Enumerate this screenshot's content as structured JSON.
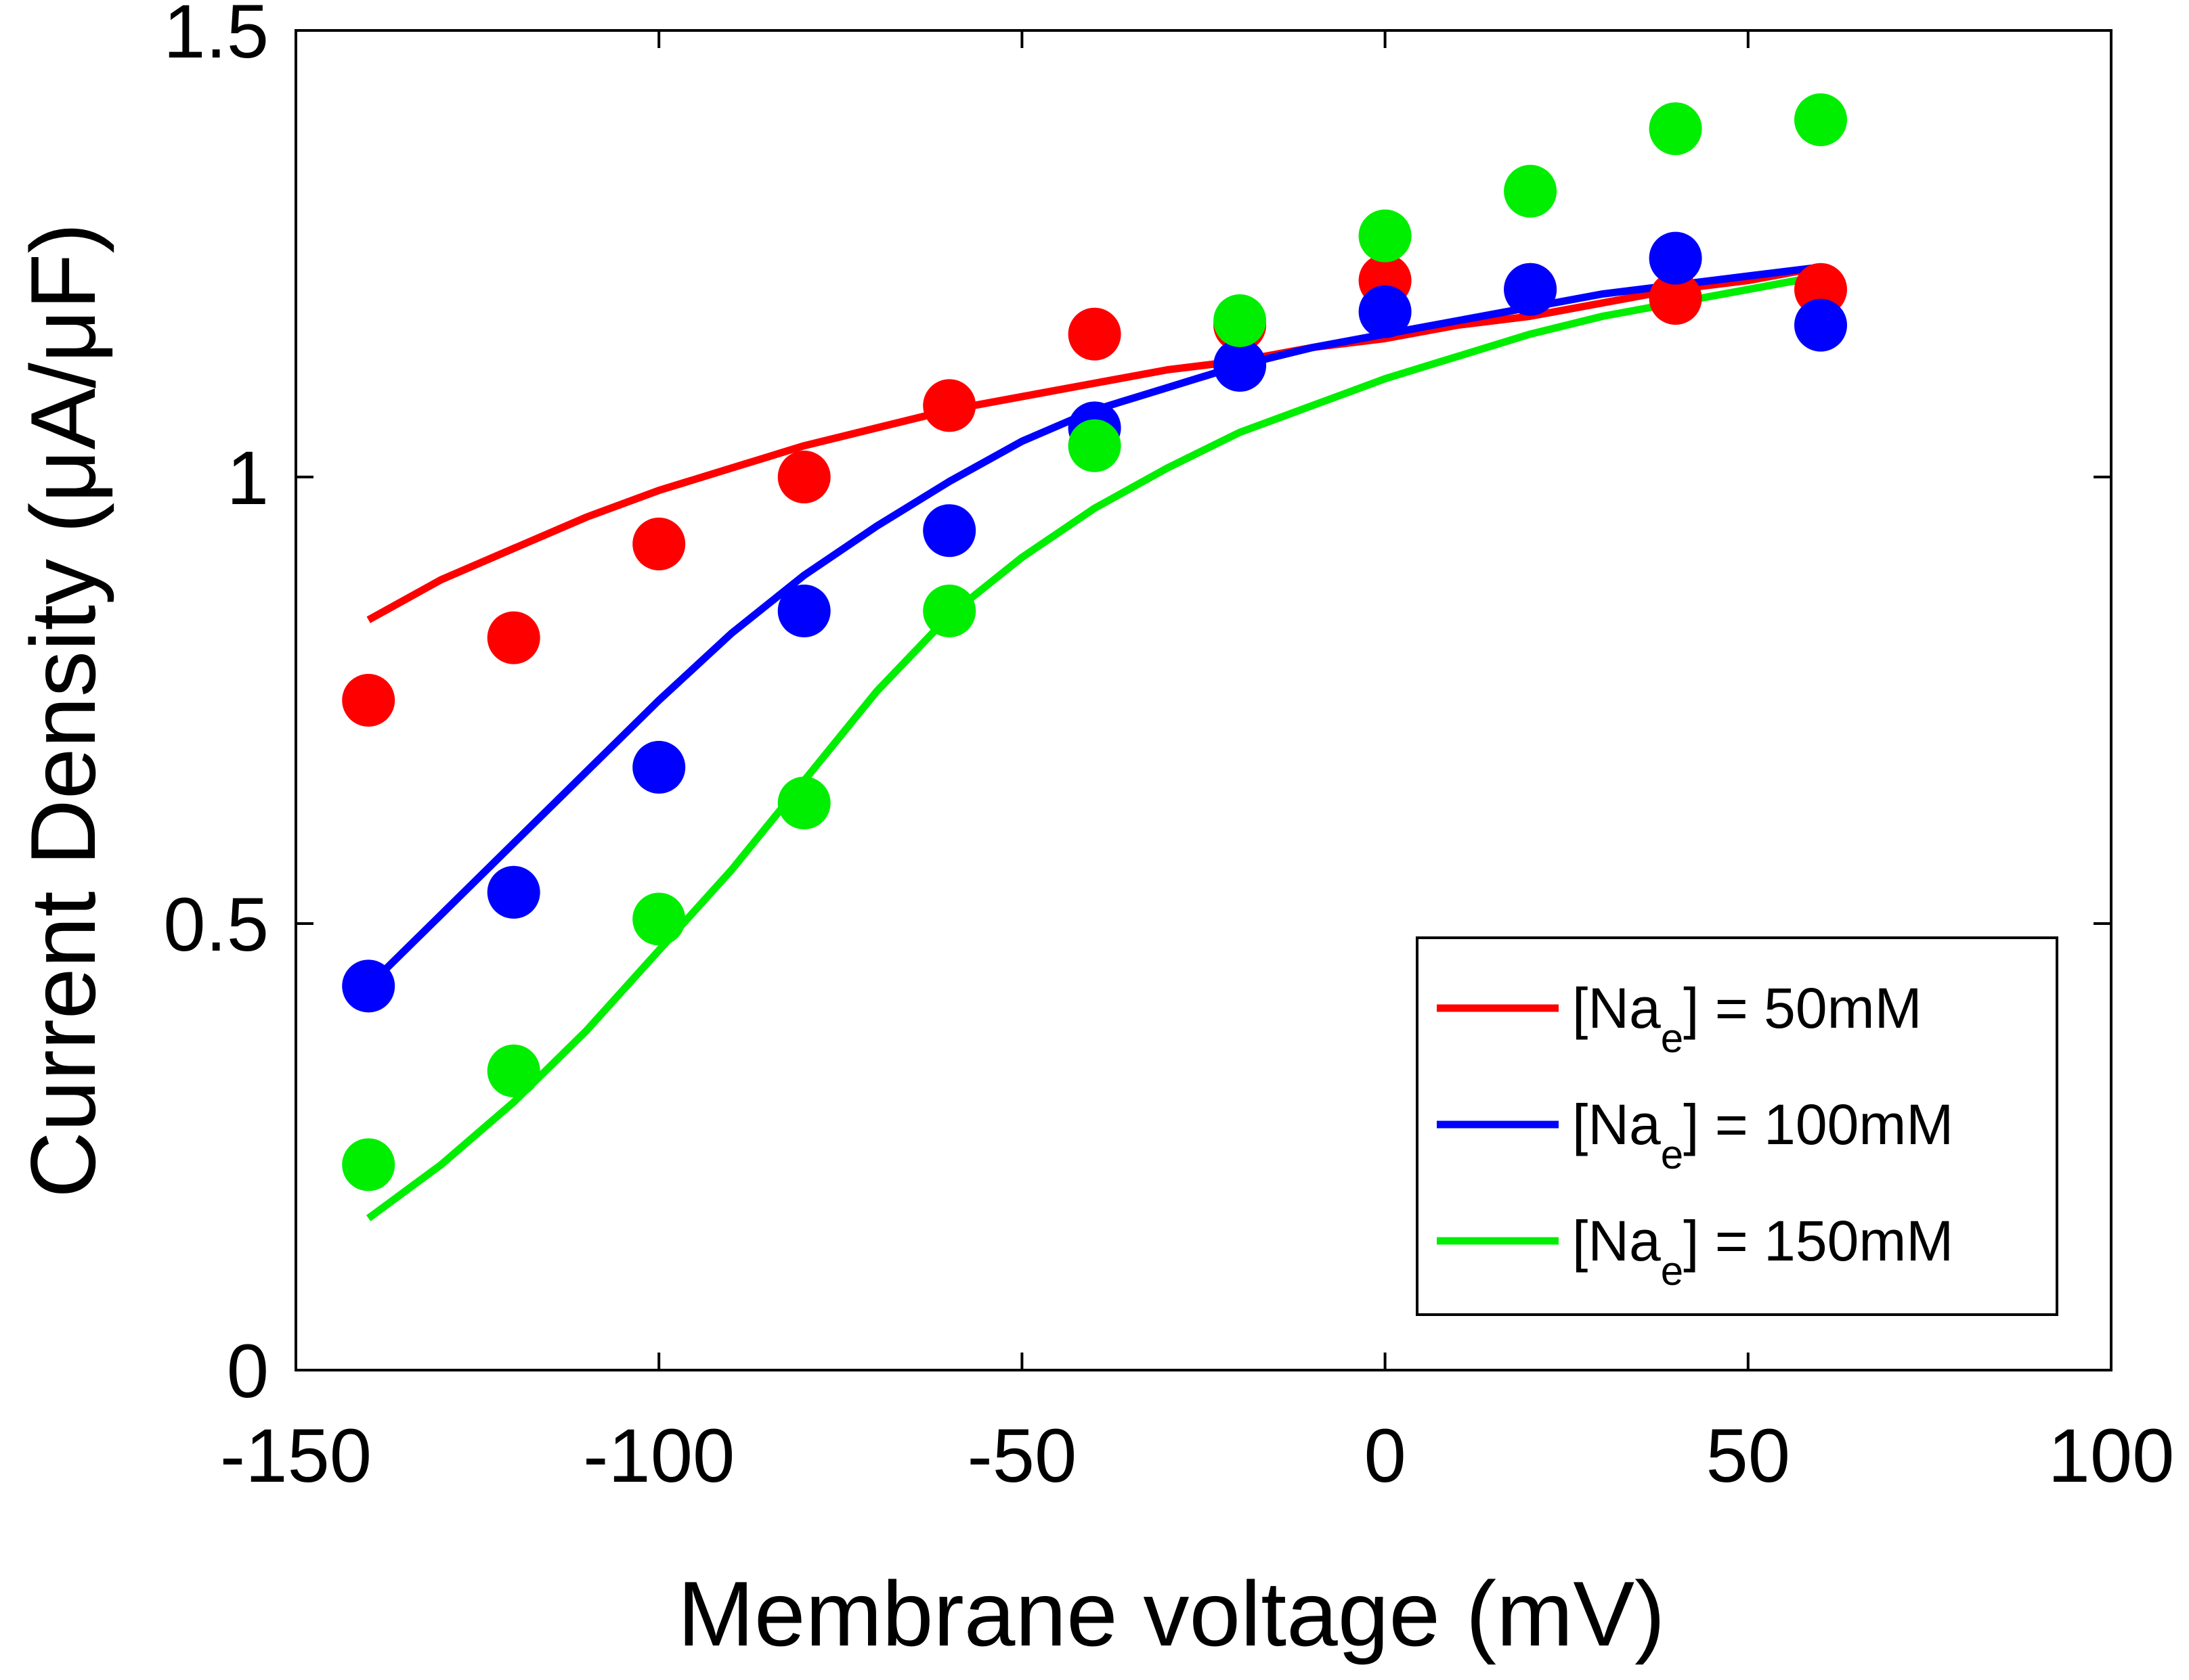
{
  "chart_data": {
    "type": "scatter",
    "title": "",
    "xlabel": "Membrane voltage (mV)",
    "ylabel": "Current Density (μA/μF)",
    "xlim": [
      -150,
      100
    ],
    "ylim": [
      0,
      1.5
    ],
    "xticks": [
      -150,
      -100,
      -50,
      0,
      50,
      100
    ],
    "yticks": [
      0,
      0.5,
      1,
      1.5
    ],
    "xtick_labels": [
      "-150",
      "-100",
      "-50",
      "0",
      "50",
      "100"
    ],
    "ytick_labels": [
      "0",
      "0.5",
      "1",
      "1.5"
    ],
    "grid": false,
    "legend_position": "bottom-right",
    "x": [
      -140,
      -120,
      -100,
      -80,
      -60,
      -40,
      -20,
      0,
      20,
      40,
      60
    ],
    "series": [
      {
        "name_parts": [
          "[Na",
          "e",
          "] = 50mM"
        ],
        "color": "#ff0000",
        "values": [
          0.75,
          0.82,
          0.925,
          1.0,
          1.08,
          1.16,
          1.17,
          1.22,
          1.21,
          1.2,
          1.21
        ],
        "fit_x": [
          -140,
          -130,
          -120,
          -110,
          -100,
          -90,
          -80,
          -70,
          -60,
          -50,
          -40,
          -30,
          -20,
          -10,
          0,
          10,
          20,
          30,
          40,
          50,
          60
        ],
        "fit_y": [
          0.84,
          0.885,
          0.92,
          0.955,
          0.985,
          1.01,
          1.035,
          1.055,
          1.075,
          1.09,
          1.105,
          1.12,
          1.13,
          1.145,
          1.155,
          1.17,
          1.18,
          1.195,
          1.21,
          1.22,
          1.235
        ]
      },
      {
        "name_parts": [
          "[Na",
          "e",
          "] = 100mM"
        ],
        "color": "#0000ff",
        "values": [
          0.43,
          0.535,
          0.675,
          0.85,
          0.94,
          1.055,
          1.125,
          1.185,
          1.21,
          1.245,
          1.17
        ],
        "fit_x": [
          -140,
          -130,
          -120,
          -110,
          -100,
          -90,
          -80,
          -70,
          -60,
          -50,
          -40,
          -30,
          -20,
          -10,
          0,
          10,
          20,
          30,
          40,
          50,
          60
        ],
        "fit_y": [
          0.43,
          0.51,
          0.59,
          0.67,
          0.75,
          0.825,
          0.89,
          0.945,
          0.995,
          1.04,
          1.075,
          1.1,
          1.125,
          1.145,
          1.16,
          1.175,
          1.19,
          1.205,
          1.215,
          1.225,
          1.235
        ]
      },
      {
        "name_parts": [
          "[Na",
          "e",
          "] = 150mM"
        ],
        "color": "#00ee00",
        "values": [
          0.23,
          0.335,
          0.505,
          0.635,
          0.85,
          1.035,
          1.175,
          1.27,
          1.32,
          1.39,
          1.4
        ],
        "fit_x": [
          -140,
          -130,
          -120,
          -110,
          -100,
          -90,
          -80,
          -70,
          -60,
          -50,
          -40,
          -30,
          -20,
          -10,
          0,
          10,
          20,
          30,
          40,
          50,
          60
        ],
        "fit_y": [
          0.17,
          0.23,
          0.3,
          0.38,
          0.47,
          0.56,
          0.66,
          0.76,
          0.845,
          0.91,
          0.965,
          1.01,
          1.05,
          1.08,
          1.11,
          1.135,
          1.16,
          1.18,
          1.195,
          1.21,
          1.225
        ]
      }
    ]
  }
}
